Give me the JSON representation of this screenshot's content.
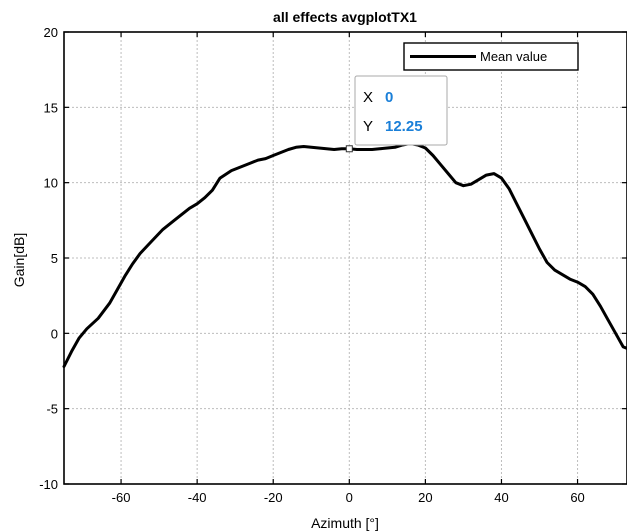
{
  "chart_data": {
    "type": "line",
    "title": "all effects avgplotTX1",
    "xlabel": "Azimuth [°]",
    "ylabel": "Gain[dB]",
    "xlim": [
      -75,
      73
    ],
    "ylim": [
      -10,
      20
    ],
    "xticks": [
      -60,
      -40,
      -20,
      0,
      20,
      40,
      60
    ],
    "yticks": [
      -10,
      -5,
      0,
      5,
      10,
      15,
      20
    ],
    "grid": true,
    "legend_position": "top-right",
    "series": [
      {
        "name": "Mean value",
        "color": "#000000",
        "x": [
          -75,
          -73,
          -71,
          -69,
          -66,
          -63,
          -61,
          -59,
          -57,
          -55,
          -52,
          -49,
          -46,
          -44,
          -42,
          -40,
          -38,
          -36,
          -34,
          -31,
          -29,
          -26,
          -24,
          -22,
          -20,
          -18,
          -16,
          -14,
          -12,
          -10,
          -8,
          -6,
          -4,
          -2,
          0,
          2,
          4,
          6,
          8,
          10,
          12,
          14,
          16,
          18,
          20,
          22,
          24,
          26,
          28,
          30,
          32,
          34,
          36,
          38,
          40,
          42,
          44,
          46,
          48,
          50,
          52,
          54,
          56,
          58,
          60,
          62,
          64,
          66,
          68,
          70,
          72,
          73
        ],
        "y": [
          -2.2,
          -1.2,
          -0.3,
          0.3,
          1.0,
          2.0,
          2.9,
          3.8,
          4.6,
          5.3,
          6.1,
          6.9,
          7.5,
          7.9,
          8.3,
          8.6,
          9.0,
          9.5,
          10.3,
          10.8,
          11.0,
          11.3,
          11.5,
          11.6,
          11.8,
          12.0,
          12.2,
          12.35,
          12.4,
          12.35,
          12.3,
          12.25,
          12.2,
          12.25,
          12.25,
          12.2,
          12.2,
          12.2,
          12.25,
          12.3,
          12.35,
          12.5,
          12.6,
          12.5,
          12.3,
          11.8,
          11.2,
          10.6,
          10.0,
          9.8,
          9.9,
          10.2,
          10.5,
          10.6,
          10.3,
          9.6,
          8.6,
          7.6,
          6.6,
          5.6,
          4.7,
          4.2,
          3.9,
          3.6,
          3.4,
          3.1,
          2.6,
          1.8,
          0.9,
          0.0,
          -0.9,
          -1.0
        ]
      }
    ],
    "datatip": {
      "x_key": "X",
      "x_value": "0",
      "y_key": "Y",
      "y_value": "12.25",
      "x": 0,
      "y": 12.25
    }
  }
}
